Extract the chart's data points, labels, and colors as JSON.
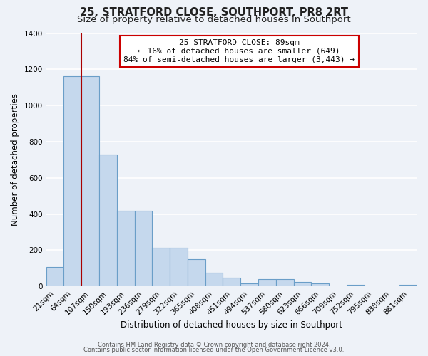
{
  "title": "25, STRATFORD CLOSE, SOUTHPORT, PR8 2RT",
  "subtitle": "Size of property relative to detached houses in Southport",
  "xlabel": "Distribution of detached houses by size in Southport",
  "ylabel": "Number of detached properties",
  "bar_labels": [
    "21sqm",
    "64sqm",
    "107sqm",
    "150sqm",
    "193sqm",
    "236sqm",
    "279sqm",
    "322sqm",
    "365sqm",
    "408sqm",
    "451sqm",
    "494sqm",
    "537sqm",
    "580sqm",
    "623sqm",
    "666sqm",
    "709sqm",
    "752sqm",
    "795sqm",
    "838sqm",
    "881sqm"
  ],
  "bar_values": [
    107,
    1160,
    1160,
    730,
    420,
    420,
    215,
    215,
    150,
    75,
    50,
    15,
    40,
    40,
    25,
    15,
    0,
    10,
    0,
    0,
    10
  ],
  "bar_color": "#c5d8ed",
  "bar_edge_color": "#6a9ec8",
  "ylim": [
    0,
    1400
  ],
  "yticks": [
    0,
    200,
    400,
    600,
    800,
    1000,
    1200,
    1400
  ],
  "property_line_color": "#aa0000",
  "annotation_title": "25 STRATFORD CLOSE: 89sqm",
  "annotation_line1": "← 16% of detached houses are smaller (649)",
  "annotation_line2": "84% of semi-detached houses are larger (3,443) →",
  "annotation_box_color": "#cc0000",
  "footer_line1": "Contains HM Land Registry data © Crown copyright and database right 2024.",
  "footer_line2": "Contains public sector information licensed under the Open Government Licence v3.0.",
  "bg_color": "#eef2f8",
  "grid_color": "#ffffff",
  "title_fontsize": 10.5,
  "subtitle_fontsize": 9.5,
  "axis_label_fontsize": 8.5,
  "tick_fontsize": 7.5,
  "footer_fontsize": 6.0
}
